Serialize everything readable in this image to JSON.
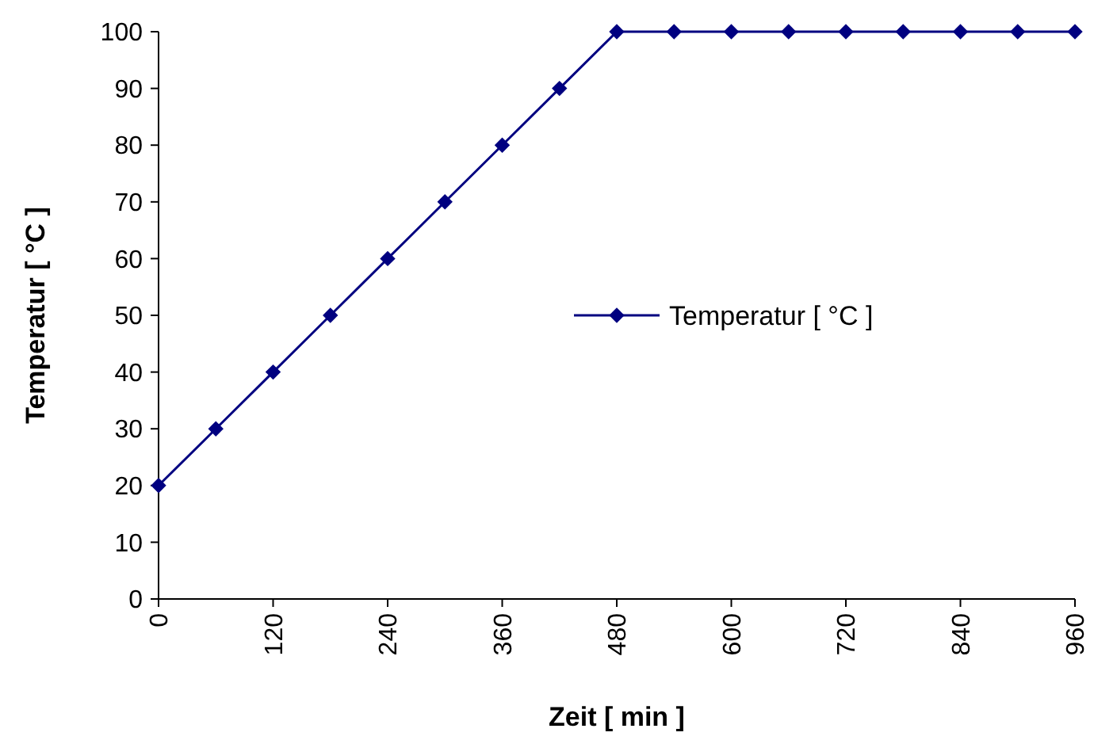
{
  "chart_data": {
    "type": "line",
    "xlabel": "Zeit  [ min ]",
    "ylabel": "Temperatur  [ °C ]",
    "x": [
      0,
      60,
      120,
      180,
      240,
      300,
      360,
      420,
      480,
      540,
      600,
      660,
      720,
      780,
      840,
      900,
      960
    ],
    "series": [
      {
        "name": "Temperatur [ °C ]",
        "color": "#000080",
        "values": [
          20,
          30,
          40,
          50,
          60,
          70,
          80,
          90,
          100,
          100,
          100,
          100,
          100,
          100,
          100,
          100,
          100
        ]
      }
    ],
    "xlim": [
      0,
      960
    ],
    "xticks": [
      0,
      120,
      240,
      360,
      480,
      600,
      720,
      840,
      960
    ],
    "ylim": [
      0,
      100
    ],
    "yticks": [
      0,
      10,
      20,
      30,
      40,
      50,
      60,
      70,
      80,
      90,
      100
    ],
    "grid": false,
    "legend": "right",
    "marker": "diamond",
    "line_style": "solid"
  }
}
